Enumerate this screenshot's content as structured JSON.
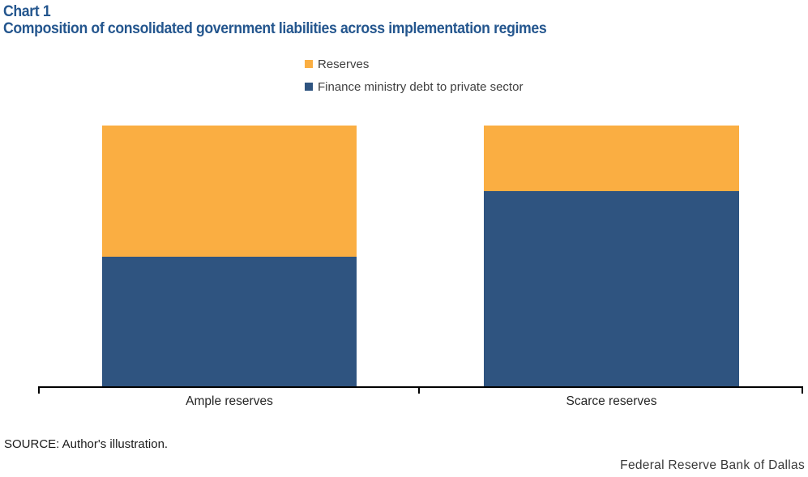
{
  "header": {
    "chart_label": "Chart 1",
    "title": "Composition of consolidated government liabilities across implementation regimes"
  },
  "legend": [
    {
      "label": "Reserves",
      "color": "#FAAE42"
    },
    {
      "label": "Finance ministry debt to private sector",
      "color": "#2F5480"
    }
  ],
  "chart_data": {
    "type": "bar",
    "stacked": true,
    "title": "Composition of consolidated government liabilities across implementation regimes",
    "categories": [
      "Ample reserves",
      "Scarce reserves"
    ],
    "series": [
      {
        "name": "Finance ministry debt to private sector",
        "color": "#2F5480",
        "values": [
          50,
          75
        ]
      },
      {
        "name": "Reserves",
        "color": "#FAAE42",
        "values": [
          50,
          25
        ]
      }
    ],
    "ylim": [
      0,
      100
    ],
    "xlabel": "",
    "ylabel": "",
    "grid": false,
    "y_axis_shown": false,
    "legend_position": "top-center",
    "axis_color": "#000000"
  },
  "source": "SOURCE: Author's illustration.",
  "footer": "Federal Reserve Bank of Dallas",
  "colors": {
    "title": "#24568E",
    "bar_orange": "#FAAE42",
    "bar_blue": "#2F5480",
    "axis": "#000000"
  }
}
